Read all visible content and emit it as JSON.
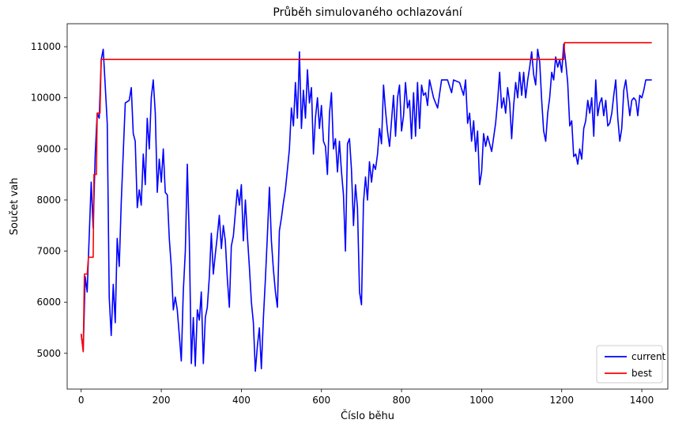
{
  "chart_data": {
    "type": "line",
    "title": "Průběh simulovaného ochlazování",
    "xlabel": "Číslo běhu",
    "ylabel": "Součet vah",
    "xlim": [
      -35,
      1465
    ],
    "ylim": [
      4300,
      11450
    ],
    "xticks": [
      0,
      200,
      400,
      600,
      800,
      1000,
      1200,
      1400
    ],
    "yticks": [
      5000,
      6000,
      7000,
      8000,
      9000,
      10000,
      11000
    ],
    "grid": false,
    "legend_position": "bottom-right",
    "series": [
      {
        "name": "current",
        "color": "#0000ff",
        "points": [
          [
            0,
            5380
          ],
          [
            5,
            5050
          ],
          [
            10,
            6500
          ],
          [
            15,
            6200
          ],
          [
            20,
            7300
          ],
          [
            25,
            8350
          ],
          [
            30,
            7450
          ],
          [
            35,
            8900
          ],
          [
            40,
            9700
          ],
          [
            45,
            9600
          ],
          [
            50,
            10750
          ],
          [
            55,
            10950
          ],
          [
            60,
            10250
          ],
          [
            65,
            9500
          ],
          [
            70,
            6100
          ],
          [
            75,
            5350
          ],
          [
            80,
            6350
          ],
          [
            85,
            5600
          ],
          [
            90,
            7250
          ],
          [
            95,
            6700
          ],
          [
            100,
            7950
          ],
          [
            110,
            9900
          ],
          [
            120,
            9950
          ],
          [
            125,
            10200
          ],
          [
            130,
            9300
          ],
          [
            135,
            9150
          ],
          [
            140,
            7850
          ],
          [
            145,
            8200
          ],
          [
            150,
            7900
          ],
          [
            155,
            8900
          ],
          [
            160,
            8300
          ],
          [
            165,
            9600
          ],
          [
            170,
            9000
          ],
          [
            175,
            10000
          ],
          [
            180,
            10350
          ],
          [
            185,
            9700
          ],
          [
            190,
            8150
          ],
          [
            195,
            8800
          ],
          [
            200,
            8350
          ],
          [
            205,
            9000
          ],
          [
            210,
            8150
          ],
          [
            215,
            8100
          ],
          [
            220,
            7250
          ],
          [
            225,
            6700
          ],
          [
            230,
            5850
          ],
          [
            235,
            6100
          ],
          [
            240,
            5850
          ],
          [
            245,
            5350
          ],
          [
            250,
            4850
          ],
          [
            255,
            6200
          ],
          [
            260,
            7000
          ],
          [
            265,
            8700
          ],
          [
            270,
            7250
          ],
          [
            275,
            4800
          ],
          [
            280,
            5700
          ],
          [
            285,
            4750
          ],
          [
            290,
            5850
          ],
          [
            295,
            5650
          ],
          [
            300,
            6200
          ],
          [
            305,
            4800
          ],
          [
            310,
            5700
          ],
          [
            315,
            5900
          ],
          [
            320,
            6500
          ],
          [
            325,
            7350
          ],
          [
            330,
            6550
          ],
          [
            335,
            6950
          ],
          [
            340,
            7300
          ],
          [
            345,
            7700
          ],
          [
            350,
            7050
          ],
          [
            355,
            7500
          ],
          [
            360,
            7200
          ],
          [
            365,
            6450
          ],
          [
            370,
            5900
          ],
          [
            375,
            7100
          ],
          [
            380,
            7300
          ],
          [
            385,
            7750
          ],
          [
            390,
            8200
          ],
          [
            395,
            7900
          ],
          [
            400,
            8300
          ],
          [
            405,
            7200
          ],
          [
            410,
            8000
          ],
          [
            415,
            7300
          ],
          [
            420,
            6700
          ],
          [
            425,
            6000
          ],
          [
            430,
            5600
          ],
          [
            435,
            4650
          ],
          [
            440,
            5150
          ],
          [
            445,
            5500
          ],
          [
            450,
            4700
          ],
          [
            455,
            5700
          ],
          [
            460,
            6450
          ],
          [
            465,
            7300
          ],
          [
            470,
            8250
          ],
          [
            475,
            7200
          ],
          [
            480,
            6650
          ],
          [
            485,
            6200
          ],
          [
            490,
            5900
          ],
          [
            495,
            7400
          ],
          [
            500,
            7650
          ],
          [
            505,
            7950
          ],
          [
            510,
            8200
          ],
          [
            515,
            8600
          ],
          [
            520,
            9000
          ],
          [
            525,
            9800
          ],
          [
            530,
            9450
          ],
          [
            535,
            10300
          ],
          [
            540,
            9600
          ],
          [
            545,
            10900
          ],
          [
            550,
            9400
          ],
          [
            555,
            10150
          ],
          [
            560,
            9600
          ],
          [
            565,
            10550
          ],
          [
            570,
            9900
          ],
          [
            575,
            10200
          ],
          [
            580,
            8900
          ],
          [
            585,
            9600
          ],
          [
            590,
            10000
          ],
          [
            595,
            9400
          ],
          [
            600,
            9850
          ],
          [
            605,
            9150
          ],
          [
            610,
            9050
          ],
          [
            615,
            8500
          ],
          [
            620,
            9700
          ],
          [
            625,
            10100
          ],
          [
            630,
            9000
          ],
          [
            635,
            9200
          ],
          [
            640,
            8550
          ],
          [
            645,
            9150
          ],
          [
            650,
            8550
          ],
          [
            655,
            8100
          ],
          [
            660,
            7000
          ],
          [
            665,
            9100
          ],
          [
            670,
            9200
          ],
          [
            675,
            8600
          ],
          [
            680,
            7500
          ],
          [
            685,
            8300
          ],
          [
            690,
            7850
          ],
          [
            695,
            6200
          ],
          [
            700,
            5950
          ],
          [
            705,
            7950
          ],
          [
            710,
            8450
          ],
          [
            715,
            8000
          ],
          [
            720,
            8750
          ],
          [
            725,
            8350
          ],
          [
            730,
            8700
          ],
          [
            735,
            8600
          ],
          [
            740,
            8900
          ],
          [
            745,
            9400
          ],
          [
            750,
            9100
          ],
          [
            755,
            10250
          ],
          [
            760,
            9750
          ],
          [
            765,
            9350
          ],
          [
            770,
            9050
          ],
          [
            775,
            9550
          ],
          [
            780,
            10050
          ],
          [
            785,
            9250
          ],
          [
            790,
            10000
          ],
          [
            795,
            10250
          ],
          [
            800,
            9350
          ],
          [
            805,
            9650
          ],
          [
            810,
            10300
          ],
          [
            815,
            9800
          ],
          [
            820,
            9950
          ],
          [
            825,
            9200
          ],
          [
            830,
            10100
          ],
          [
            835,
            9250
          ],
          [
            840,
            10300
          ],
          [
            845,
            9400
          ],
          [
            850,
            10250
          ],
          [
            855,
            10050
          ],
          [
            860,
            10100
          ],
          [
            865,
            9850
          ],
          [
            870,
            10350
          ],
          [
            880,
            10000
          ],
          [
            890,
            9800
          ],
          [
            900,
            10350
          ],
          [
            915,
            10350
          ],
          [
            925,
            10100
          ],
          [
            930,
            10350
          ],
          [
            945,
            10300
          ],
          [
            955,
            10050
          ],
          [
            960,
            10350
          ],
          [
            965,
            9500
          ],
          [
            970,
            9700
          ],
          [
            975,
            9150
          ],
          [
            980,
            9550
          ],
          [
            985,
            8950
          ],
          [
            990,
            9350
          ],
          [
            995,
            8300
          ],
          [
            1000,
            8550
          ],
          [
            1005,
            9300
          ],
          [
            1010,
            9050
          ],
          [
            1015,
            9250
          ],
          [
            1020,
            9100
          ],
          [
            1025,
            8950
          ],
          [
            1035,
            9500
          ],
          [
            1040,
            9950
          ],
          [
            1045,
            10500
          ],
          [
            1050,
            9800
          ],
          [
            1055,
            10000
          ],
          [
            1060,
            9700
          ],
          [
            1065,
            10200
          ],
          [
            1070,
            9900
          ],
          [
            1075,
            9200
          ],
          [
            1080,
            9850
          ],
          [
            1085,
            10300
          ],
          [
            1090,
            10000
          ],
          [
            1095,
            10500
          ],
          [
            1100,
            10050
          ],
          [
            1105,
            10500
          ],
          [
            1110,
            10000
          ],
          [
            1115,
            10350
          ],
          [
            1120,
            10600
          ],
          [
            1125,
            10900
          ],
          [
            1130,
            10450
          ],
          [
            1135,
            10250
          ],
          [
            1140,
            10950
          ],
          [
            1145,
            10700
          ],
          [
            1150,
            9950
          ],
          [
            1155,
            9350
          ],
          [
            1160,
            9150
          ],
          [
            1165,
            9700
          ],
          [
            1170,
            10000
          ],
          [
            1175,
            10500
          ],
          [
            1180,
            10350
          ],
          [
            1185,
            10800
          ],
          [
            1190,
            10600
          ],
          [
            1195,
            10750
          ],
          [
            1200,
            10500
          ],
          [
            1205,
            11050
          ],
          [
            1210,
            10700
          ],
          [
            1215,
            10300
          ],
          [
            1220,
            9450
          ],
          [
            1225,
            9550
          ],
          [
            1230,
            8850
          ],
          [
            1235,
            8900
          ],
          [
            1240,
            8700
          ],
          [
            1245,
            9000
          ],
          [
            1250,
            8800
          ],
          [
            1255,
            9400
          ],
          [
            1260,
            9550
          ],
          [
            1265,
            9950
          ],
          [
            1270,
            9700
          ],
          [
            1275,
            10000
          ],
          [
            1280,
            9250
          ],
          [
            1285,
            10350
          ],
          [
            1290,
            9650
          ],
          [
            1295,
            9900
          ],
          [
            1300,
            10000
          ],
          [
            1305,
            9650
          ],
          [
            1310,
            9950
          ],
          [
            1315,
            9450
          ],
          [
            1320,
            9500
          ],
          [
            1325,
            9700
          ],
          [
            1330,
            10050
          ],
          [
            1335,
            10350
          ],
          [
            1340,
            9600
          ],
          [
            1345,
            9150
          ],
          [
            1350,
            9400
          ],
          [
            1355,
            10150
          ],
          [
            1360,
            10350
          ],
          [
            1365,
            10000
          ],
          [
            1370,
            9650
          ],
          [
            1375,
            9950
          ],
          [
            1380,
            10000
          ],
          [
            1385,
            9950
          ],
          [
            1390,
            9650
          ],
          [
            1395,
            10050
          ],
          [
            1400,
            10000
          ],
          [
            1405,
            10150
          ],
          [
            1410,
            10350
          ],
          [
            1425,
            10350
          ]
        ]
      },
      {
        "name": "best",
        "color": "#ff0000",
        "points": [
          [
            0,
            5380
          ],
          [
            5,
            5030
          ],
          [
            8,
            6550
          ],
          [
            15,
            6550
          ],
          [
            18,
            6880
          ],
          [
            30,
            6880
          ],
          [
            32,
            8500
          ],
          [
            38,
            8500
          ],
          [
            40,
            9700
          ],
          [
            47,
            9700
          ],
          [
            50,
            10750
          ],
          [
            1205,
            10750
          ],
          [
            1207,
            11080
          ],
          [
            1425,
            11080
          ]
        ]
      }
    ]
  }
}
